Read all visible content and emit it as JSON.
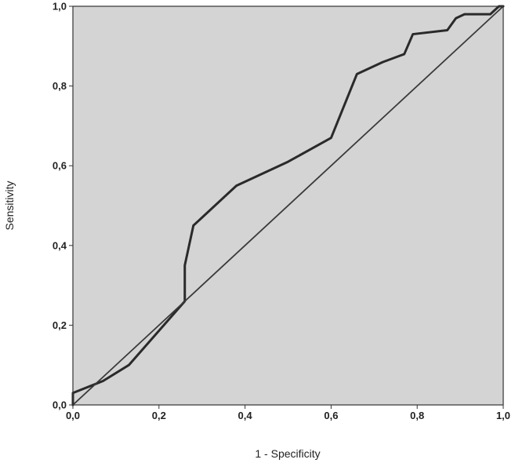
{
  "chart_data": {
    "type": "line",
    "title": "",
    "xlabel": "1 - Specificity",
    "ylabel": "Sensitivity",
    "xlim": [
      0,
      1
    ],
    "ylim": [
      0,
      1
    ],
    "xticks": [
      "0,0",
      "0,2",
      "0,4",
      "0,6",
      "0,8",
      "1,0"
    ],
    "yticks": [
      "0,0",
      "0,2",
      "0,4",
      "0,6",
      "0,8",
      "1,0"
    ],
    "grid": false,
    "legend": "none",
    "colors": {
      "plot_background": "#d4d4d4",
      "line": "#2a2a2a",
      "reference": "#3a3a3a"
    },
    "series": [
      {
        "x": [
          0.0,
          0.0,
          0.07,
          0.13,
          0.26,
          0.26,
          0.28,
          0.38,
          0.5,
          0.6,
          0.66,
          0.72,
          0.77,
          0.79,
          0.87,
          0.89,
          0.91,
          0.97,
          0.99,
          1.0
        ],
        "y": [
          0.0,
          0.03,
          0.06,
          0.1,
          0.26,
          0.35,
          0.45,
          0.55,
          0.61,
          0.67,
          0.83,
          0.86,
          0.88,
          0.93,
          0.94,
          0.97,
          0.98,
          0.98,
          1.0,
          1.0
        ]
      },
      {
        "x": [
          0,
          1
        ],
        "y": [
          0,
          1
        ]
      }
    ]
  }
}
